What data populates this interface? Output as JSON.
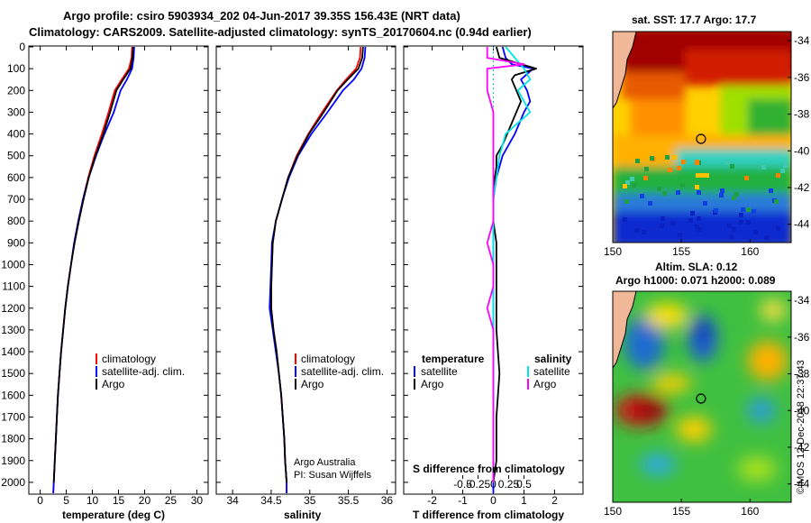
{
  "header": {
    "title_line1": "Argo profile: csiro 5903934_202 04-Jun-2017 39.35S 156.43E (NRT data)",
    "title_line2": "Climatology: CARS2009. Satellite-adjusted climatology: synTS_20170604.nc (0.94d earlier)"
  },
  "credit": {
    "line1": "Argo Australia",
    "line2": "PI: Susan Wijffels"
  },
  "watermark": "©IMOS 12-Dec-2018 22:37:43",
  "colors": {
    "climatology": "#ff0000",
    "satellite": "#0000ff",
    "argo": "#000000",
    "s_satellite": "#00e5e5",
    "s_argo": "#ff00ff"
  },
  "chart_data": [
    {
      "id": "temperature",
      "type": "line",
      "xlabel": "temperature (deg C)",
      "xlim": [
        -2,
        32
      ],
      "ylim": [
        0,
        2050
      ],
      "xticks": [
        "0",
        "5",
        "10",
        "15",
        "20",
        "25",
        "30"
      ],
      "yticks": [
        "0",
        "100",
        "200",
        "300",
        "400",
        "500",
        "600",
        "700",
        "800",
        "900",
        "1000",
        "1100",
        "1200",
        "1300",
        "1400",
        "1500",
        "1600",
        "1700",
        "1800",
        "1900",
        "2000"
      ],
      "legend": [
        "climatology",
        "satellite-adj. clim.",
        "Argo"
      ],
      "series": [
        {
          "name": "climatology",
          "color": "#ff0000",
          "points": [
            [
              17.6,
              0
            ],
            [
              17.5,
              50
            ],
            [
              17.0,
              100
            ],
            [
              15.6,
              150
            ],
            [
              14.3,
              200
            ],
            [
              13.1,
              300
            ],
            [
              11.8,
              400
            ],
            [
              10.4,
              500
            ],
            [
              9.2,
              600
            ],
            [
              8.2,
              700
            ],
            [
              7.3,
              800
            ],
            [
              6.5,
              900
            ],
            [
              5.9,
              1000
            ],
            [
              5.3,
              1100
            ],
            [
              4.8,
              1200
            ],
            [
              4.4,
              1300
            ],
            [
              4.0,
              1400
            ],
            [
              3.7,
              1500
            ],
            [
              3.4,
              1600
            ],
            [
              3.2,
              1700
            ],
            [
              3.0,
              1800
            ],
            [
              2.8,
              1900
            ],
            [
              2.6,
              2000
            ],
            [
              2.5,
              2050
            ]
          ]
        },
        {
          "name": "satellite-adj. clim.",
          "color": "#0000ff",
          "points": [
            [
              18.0,
              0
            ],
            [
              17.9,
              50
            ],
            [
              17.6,
              100
            ],
            [
              16.6,
              150
            ],
            [
              15.4,
              200
            ],
            [
              14.1,
              300
            ],
            [
              12.3,
              400
            ],
            [
              10.7,
              500
            ],
            [
              9.3,
              600
            ],
            [
              8.2,
              700
            ],
            [
              7.3,
              800
            ],
            [
              6.5,
              900
            ],
            [
              5.9,
              1000
            ],
            [
              5.3,
              1100
            ],
            [
              4.8,
              1200
            ],
            [
              4.4,
              1300
            ],
            [
              4.0,
              1400
            ],
            [
              3.7,
              1500
            ],
            [
              3.4,
              1600
            ],
            [
              3.2,
              1700
            ],
            [
              3.0,
              1800
            ],
            [
              2.8,
              1900
            ],
            [
              2.6,
              2000
            ],
            [
              2.5,
              2050
            ]
          ]
        },
        {
          "name": "Argo",
          "color": "#000000",
          "points": [
            [
              17.8,
              0
            ],
            [
              17.7,
              50
            ],
            [
              17.3,
              100
            ],
            [
              15.9,
              150
            ],
            [
              14.6,
              200
            ],
            [
              13.4,
              300
            ],
            [
              12.1,
              400
            ],
            [
              10.6,
              500
            ],
            [
              9.3,
              600
            ],
            [
              8.3,
              700
            ],
            [
              7.4,
              800
            ],
            [
              6.6,
              900
            ],
            [
              5.9,
              1000
            ],
            [
              5.3,
              1100
            ],
            [
              4.8,
              1200
            ],
            [
              4.4,
              1300
            ],
            [
              4.0,
              1400
            ],
            [
              3.7,
              1500
            ],
            [
              3.4,
              1600
            ],
            [
              3.2,
              1700
            ],
            [
              3.0,
              1800
            ],
            [
              2.8,
              1900
            ],
            [
              2.6,
              2000
            ]
          ]
        }
      ]
    },
    {
      "id": "salinity",
      "type": "line",
      "xlabel": "salinity",
      "xlim": [
        33.8,
        36.1
      ],
      "ylim": [
        0,
        2050
      ],
      "xticks": [
        "34",
        "34.5",
        "35",
        "35.5",
        "36"
      ],
      "legend": [
        "climatology",
        "satellite-adj. clim.",
        "Argo"
      ],
      "series": [
        {
          "name": "climatology",
          "color": "#ff0000",
          "points": [
            [
              35.66,
              0
            ],
            [
              35.65,
              50
            ],
            [
              35.6,
              100
            ],
            [
              35.47,
              150
            ],
            [
              35.35,
              200
            ],
            [
              35.16,
              300
            ],
            [
              34.98,
              400
            ],
            [
              34.83,
              500
            ],
            [
              34.72,
              600
            ],
            [
              34.64,
              700
            ],
            [
              34.56,
              800
            ],
            [
              34.52,
              900
            ],
            [
              34.51,
              1000
            ],
            [
              34.5,
              1100
            ],
            [
              34.5,
              1200
            ],
            [
              34.53,
              1300
            ],
            [
              34.57,
              1400
            ],
            [
              34.6,
              1500
            ],
            [
              34.63,
              1600
            ],
            [
              34.65,
              1700
            ],
            [
              34.67,
              1800
            ],
            [
              34.68,
              1900
            ],
            [
              34.7,
              2000
            ],
            [
              34.7,
              2050
            ]
          ]
        },
        {
          "name": "satellite-adj. clim.",
          "color": "#0000ff",
          "points": [
            [
              35.72,
              0
            ],
            [
              35.71,
              50
            ],
            [
              35.67,
              100
            ],
            [
              35.57,
              150
            ],
            [
              35.43,
              200
            ],
            [
              35.23,
              300
            ],
            [
              35.02,
              400
            ],
            [
              34.85,
              500
            ],
            [
              34.73,
              600
            ],
            [
              34.64,
              700
            ],
            [
              34.56,
              800
            ],
            [
              34.51,
              900
            ],
            [
              34.5,
              1000
            ],
            [
              34.49,
              1100
            ],
            [
              34.48,
              1200
            ],
            [
              34.52,
              1300
            ],
            [
              34.56,
              1400
            ],
            [
              34.6,
              1500
            ],
            [
              34.63,
              1600
            ],
            [
              34.65,
              1700
            ],
            [
              34.67,
              1800
            ],
            [
              34.68,
              1900
            ],
            [
              34.7,
              2000
            ],
            [
              34.7,
              2050
            ]
          ]
        },
        {
          "name": "Argo",
          "color": "#000000",
          "points": [
            [
              35.69,
              0
            ],
            [
              35.68,
              50
            ],
            [
              35.63,
              100
            ],
            [
              35.49,
              150
            ],
            [
              35.36,
              200
            ],
            [
              35.18,
              300
            ],
            [
              34.99,
              400
            ],
            [
              34.84,
              500
            ],
            [
              34.72,
              600
            ],
            [
              34.64,
              700
            ],
            [
              34.56,
              800
            ],
            [
              34.52,
              900
            ],
            [
              34.51,
              1000
            ],
            [
              34.5,
              1100
            ],
            [
              34.5,
              1200
            ],
            [
              34.53,
              1300
            ],
            [
              34.57,
              1400
            ],
            [
              34.6,
              1500
            ],
            [
              34.63,
              1600
            ],
            [
              34.65,
              1700
            ],
            [
              34.67,
              1800
            ],
            [
              34.68,
              1900
            ],
            [
              34.7,
              2000
            ]
          ]
        }
      ]
    },
    {
      "id": "differences",
      "type": "line",
      "xlabel": "T difference from climatology",
      "s_axis_label": "S difference from climatology",
      "xlim": [
        -2.9,
        2.9
      ],
      "ylim": [
        0,
        2050
      ],
      "xticks": [
        "-2",
        "-1",
        "0",
        "1",
        "2"
      ],
      "s_ticks": [
        "-0.5",
        "-0.25",
        "0",
        "0.25",
        "0.5"
      ],
      "legend_temperature": {
        "title": "temperature",
        "items": [
          "satellite",
          "Argo"
        ]
      },
      "legend_salinity": {
        "title": "salinity",
        "items": [
          "satellite",
          "Argo"
        ]
      },
      "series": [
        {
          "name": "T satellite",
          "color": "#0000ff",
          "points": [
            [
              0.3,
              0
            ],
            [
              0.4,
              50
            ],
            [
              0.6,
              80
            ],
            [
              1.3,
              100
            ],
            [
              0.9,
              150
            ],
            [
              1.1,
              200
            ],
            [
              1.2,
              250
            ],
            [
              1.0,
              300
            ],
            [
              0.7,
              400
            ],
            [
              0.3,
              500
            ],
            [
              0.1,
              600
            ],
            [
              0.0,
              700
            ],
            [
              0.0,
              900
            ],
            [
              0.0,
              1100
            ],
            [
              0.0,
              1500
            ],
            [
              0.0,
              2050
            ]
          ]
        },
        {
          "name": "T Argo",
          "color": "#000000",
          "points": [
            [
              0.1,
              0
            ],
            [
              0.2,
              50
            ],
            [
              1.4,
              100
            ],
            [
              0.7,
              130
            ],
            [
              0.6,
              150
            ],
            [
              0.9,
              250
            ],
            [
              0.6,
              350
            ],
            [
              0.3,
              450
            ],
            [
              0.1,
              500
            ],
            [
              0.1,
              550
            ],
            [
              0.0,
              650
            ],
            [
              0.0,
              700
            ],
            [
              0.0,
              800
            ],
            [
              0.1,
              900
            ],
            [
              0.1,
              1100
            ],
            [
              0.1,
              1300
            ],
            [
              0.2,
              1500
            ],
            [
              0.1,
              1700
            ],
            [
              0.1,
              1900
            ],
            [
              0.0,
              2000
            ]
          ]
        },
        {
          "name": "S satellite",
          "color": "#00e5e5",
          "points": [
            [
              0.2,
              0
            ],
            [
              0.5,
              100
            ],
            [
              0.6,
              150
            ],
            [
              0.4,
              200
            ],
            [
              0.6,
              300
            ],
            [
              0.2,
              400
            ],
            [
              0.1,
              500
            ],
            [
              0.0,
              700
            ],
            [
              0.0,
              900
            ],
            [
              0.0,
              1100
            ],
            [
              0.0,
              1500
            ],
            [
              0.0,
              2000
            ]
          ]
        },
        {
          "name": "S Argo",
          "color": "#ff00ff",
          "points": [
            [
              -0.1,
              0
            ],
            [
              -0.1,
              50
            ],
            [
              0.5,
              80
            ],
            [
              -0.1,
              100
            ],
            [
              -0.1,
              200
            ],
            [
              0.0,
              300
            ],
            [
              0.0,
              500
            ],
            [
              0.0,
              800
            ],
            [
              -0.1,
              900
            ],
            [
              0.0,
              1000
            ],
            [
              0.0,
              1100
            ],
            [
              -0.1,
              1200
            ],
            [
              0.0,
              1300
            ],
            [
              0.0,
              1600
            ],
            [
              0.0,
              2000
            ]
          ]
        }
      ]
    },
    {
      "id": "sst_map",
      "type": "heatmap",
      "title": "sat. SST: 17.7 Argo: 17.7",
      "xlim": [
        150,
        163
      ],
      "ylim": [
        -45,
        -33.5
      ],
      "xticks": [
        "150",
        "155",
        "160"
      ],
      "yticks": [
        "-34",
        "-36",
        "-38",
        "-40",
        "-42",
        "-44"
      ],
      "float_position": [
        156.43,
        -39.35
      ]
    },
    {
      "id": "sla_map",
      "type": "heatmap",
      "title_line1": "Altim. SLA: 0.12",
      "title_line2": "Argo h1000: 0.071 h2000: 0.089",
      "xlim": [
        150,
        163
      ],
      "ylim": [
        -45,
        -33.5
      ],
      "xticks": [
        "150",
        "155",
        "160"
      ],
      "yticks": [
        "-34",
        "-36",
        "-38",
        "-40",
        "-42",
        "-44"
      ],
      "float_position": [
        156.43,
        -39.35
      ]
    }
  ]
}
